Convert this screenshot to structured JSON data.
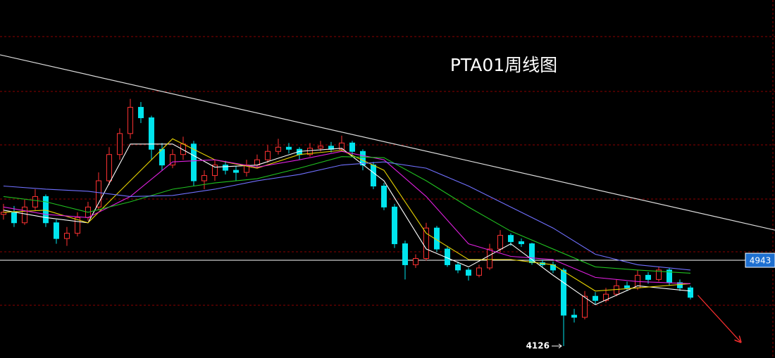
{
  "chart_data": {
    "type": "candlestick",
    "title": "PTA01周线图",
    "up_color": "#ff3232",
    "down_color": "#00e5ee",
    "xlim": [
      -0.33,
      73
    ],
    "ylim": [
      4012,
      7422
    ],
    "candles": [
      [
        5380,
        5480,
        5330,
        5400
      ],
      [
        5400,
        5460,
        5260,
        5300
      ],
      [
        5300,
        5520,
        5280,
        5450
      ],
      [
        5450,
        5620,
        5420,
        5550
      ],
      [
        5550,
        5570,
        5260,
        5300
      ],
      [
        5300,
        5330,
        5100,
        5150
      ],
      [
        5150,
        5260,
        5080,
        5200
      ],
      [
        5200,
        5400,
        5170,
        5350
      ],
      [
        5350,
        5500,
        5320,
        5450
      ],
      [
        5450,
        5780,
        5420,
        5700
      ],
      [
        5700,
        6020,
        5660,
        5950
      ],
      [
        5950,
        6200,
        5900,
        6150
      ],
      [
        6150,
        6480,
        6100,
        6400
      ],
      [
        6400,
        6450,
        6250,
        6300
      ],
      [
        6300,
        6320,
        5900,
        6000
      ],
      [
        6000,
        6060,
        5800,
        5850
      ],
      [
        5850,
        6000,
        5820,
        5950
      ],
      [
        5950,
        6120,
        5900,
        6050
      ],
      [
        6050,
        6080,
        5650,
        5700
      ],
      [
        5700,
        5800,
        5620,
        5750
      ],
      [
        5750,
        5900,
        5700,
        5850
      ],
      [
        5850,
        5890,
        5760,
        5800
      ],
      [
        5800,
        5840,
        5700,
        5780
      ],
      [
        5780,
        5900,
        5740,
        5850
      ],
      [
        5850,
        5950,
        5820,
        5900
      ],
      [
        5900,
        6040,
        5870,
        5980
      ],
      [
        5980,
        6100,
        5950,
        6020
      ],
      [
        6020,
        6060,
        5960,
        6000
      ],
      [
        6000,
        6020,
        5900,
        5950
      ],
      [
        5950,
        6060,
        5930,
        6010
      ],
      [
        6010,
        6080,
        5980,
        6030
      ],
      [
        6030,
        6070,
        5970,
        6000
      ],
      [
        6000,
        6130,
        5980,
        6060
      ],
      [
        6060,
        6080,
        5940,
        5980
      ],
      [
        5980,
        6000,
        5800,
        5850
      ],
      [
        5850,
        5880,
        5620,
        5650
      ],
      [
        5650,
        5680,
        5420,
        5450
      ],
      [
        5450,
        5480,
        5060,
        5100
      ],
      [
        5100,
        5130,
        4760,
        4900
      ],
      [
        4900,
        5000,
        4870,
        4960
      ],
      [
        4960,
        5300,
        4940,
        5250
      ],
      [
        5250,
        5270,
        5020,
        5050
      ],
      [
        5050,
        5080,
        4880,
        4900
      ],
      [
        4900,
        4930,
        4820,
        4850
      ],
      [
        4850,
        4870,
        4750,
        4800
      ],
      [
        4800,
        4900,
        4780,
        4870
      ],
      [
        4870,
        5100,
        4850,
        5050
      ],
      [
        5050,
        5230,
        5020,
        5180
      ],
      [
        5180,
        5200,
        5080,
        5120
      ],
      [
        5120,
        5150,
        5070,
        5100
      ],
      [
        5100,
        5110,
        4900,
        4920
      ],
      [
        4920,
        4950,
        4880,
        4900
      ],
      [
        4900,
        4930,
        4820,
        4850
      ],
      [
        4850,
        4870,
        4126,
        4420
      ],
      [
        4420,
        4480,
        4350,
        4400
      ],
      [
        4400,
        4650,
        4380,
        4600
      ],
      [
        4600,
        4640,
        4520,
        4560
      ],
      [
        4560,
        4680,
        4540,
        4620
      ],
      [
        4620,
        4760,
        4600,
        4700
      ],
      [
        4700,
        4740,
        4650,
        4680
      ],
      [
        4680,
        4850,
        4660,
        4800
      ],
      [
        4800,
        4830,
        4720,
        4760
      ],
      [
        4760,
        4880,
        4740,
        4850
      ],
      [
        4850,
        4870,
        4700,
        4730
      ],
      [
        4730,
        4760,
        4650,
        4680
      ],
      [
        4680,
        4700,
        4570,
        4590
      ]
    ],
    "moving_averages": [
      {
        "color": "#ffffff",
        "x": [
          0,
          4,
          8,
          12,
          16,
          20,
          24,
          28,
          32,
          36,
          40,
          44,
          48,
          52,
          56,
          60,
          65
        ],
        "values": [
          5420,
          5350,
          5300,
          6050,
          6050,
          5830,
          5850,
          5980,
          6010,
          5700,
          5050,
          4880,
          5100,
          4800,
          4520,
          4700,
          4650
        ]
      },
      {
        "color": "#e6d200",
        "x": [
          0,
          4,
          8,
          12,
          16,
          20,
          24,
          28,
          32,
          36,
          40,
          44,
          48,
          52,
          56,
          60,
          65
        ],
        "values": [
          5400,
          5420,
          5300,
          5700,
          6100,
          5900,
          5820,
          5950,
          5990,
          5800,
          5200,
          4950,
          4950,
          4900,
          4650,
          4680,
          4720
        ]
      },
      {
        "color": "#e020e0",
        "x": [
          0,
          4,
          8,
          12,
          16,
          20,
          24,
          28,
          32,
          36,
          40,
          44,
          48,
          52,
          56,
          60,
          65
        ],
        "values": [
          5450,
          5380,
          5350,
          5550,
          5880,
          5900,
          5830,
          5900,
          5980,
          5900,
          5550,
          5100,
          4980,
          4950,
          4780,
          4740,
          4720
        ]
      },
      {
        "color": "#20c020",
        "x": [
          0,
          4,
          8,
          12,
          16,
          20,
          24,
          28,
          32,
          36,
          40,
          44,
          48,
          52,
          56,
          60,
          65
        ],
        "values": [
          5550,
          5500,
          5400,
          5500,
          5620,
          5680,
          5720,
          5820,
          5930,
          5920,
          5700,
          5450,
          5220,
          5050,
          4880,
          4850,
          4820
        ]
      },
      {
        "color": "#7070ff",
        "x": [
          0,
          4,
          8,
          12,
          16,
          20,
          24,
          28,
          32,
          36,
          40,
          44,
          48,
          52,
          56,
          60,
          65
        ],
        "values": [
          5650,
          5620,
          5600,
          5550,
          5560,
          5620,
          5700,
          5760,
          5850,
          5880,
          5820,
          5650,
          5450,
          5250,
          5000,
          4900,
          4850
        ]
      }
    ],
    "trend_lines": [
      {
        "color": "#dddddd",
        "x": [
          -0.33,
          73
        ],
        "values": [
          6900,
          5230
        ]
      },
      {
        "color": "#ff3030",
        "x": [
          65.7,
          69.7
        ],
        "values": [
          4610,
          4170
        ]
      }
    ],
    "price_marker": {
      "value": 4943,
      "color": "#1e6fd0"
    },
    "low_annotation": {
      "value": 4126,
      "index": 53
    }
  }
}
